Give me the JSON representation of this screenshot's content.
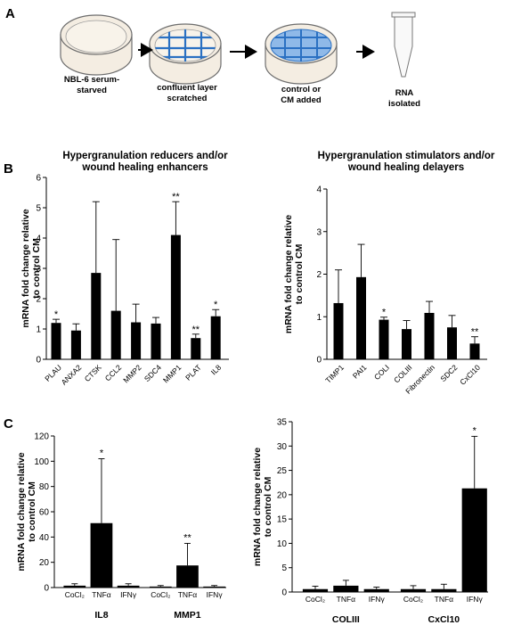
{
  "panels": {
    "a": "A",
    "b": "B",
    "c": "C"
  },
  "workflow": [
    {
      "lines": [
        "NBL-6 serum-",
        "starved"
      ]
    },
    {
      "lines": [
        "confluent layer",
        "scratched"
      ]
    },
    {
      "lines": [
        "control or",
        "CM added"
      ]
    },
    {
      "lines": [
        "RNA",
        "isolated"
      ]
    }
  ],
  "colors": {
    "bar": "#000000",
    "dish_fill": "#f4ede2",
    "dish_line": "#6e6e6e",
    "blue": "#2a70c2",
    "light_blue": "#8fb9e8"
  },
  "chart_data": [
    {
      "type": "bar",
      "title": [
        "Hypergranulation reducers and/or",
        "wound healing enhancers"
      ],
      "ylabel": [
        "mRNA fold change relative",
        "to control CM"
      ],
      "ylim": [
        0,
        6
      ],
      "yticks": [
        0,
        1,
        2,
        3,
        4,
        5,
        6
      ],
      "categories": [
        "PLAU",
        "ANXA2",
        "CTSK",
        "CCL2",
        "MMP2",
        "SDC4",
        "MMP1",
        "PLAT",
        "IL8"
      ],
      "values": [
        1.2,
        0.95,
        2.85,
        1.6,
        1.22,
        1.18,
        4.1,
        0.7,
        1.42
      ],
      "errors": [
        0.12,
        0.22,
        2.35,
        2.35,
        0.6,
        0.2,
        1.1,
        0.13,
        0.22
      ],
      "significance": [
        "*",
        "",
        "",
        "",
        "",
        "",
        "**",
        "**",
        "*"
      ]
    },
    {
      "type": "bar",
      "title": [
        "Hypergranulation stimulators and/or",
        "wound healing delayers"
      ],
      "ylabel": [
        "mRNA fold change relative",
        "to control CM"
      ],
      "ylim": [
        0,
        4
      ],
      "yticks": [
        0,
        1,
        2,
        3,
        4
      ],
      "categories": [
        "TIMP1",
        "PAI1",
        "COLI",
        "COLIII",
        "Fibronectin",
        "SDC2",
        "CxCl10"
      ],
      "values": [
        1.32,
        1.93,
        0.93,
        0.71,
        1.09,
        0.75,
        0.37
      ],
      "errors": [
        0.78,
        0.77,
        0.06,
        0.2,
        0.27,
        0.28,
        0.16
      ],
      "significance": [
        "",
        "",
        "*",
        "",
        "",
        "",
        "**"
      ]
    },
    {
      "type": "bar",
      "ylabel": [
        "mRNA fold change relative",
        "to control CM"
      ],
      "ylim": [
        0,
        120
      ],
      "yticks": [
        0,
        20,
        40,
        60,
        80,
        100,
        120
      ],
      "treatments": [
        "CoCl₂",
        "TNFα",
        "IFNγ"
      ],
      "groups": [
        {
          "name": "IL8",
          "values": [
            1.5,
            51,
            1.5
          ],
          "errors": [
            1.5,
            51,
            1.5
          ],
          "significance": [
            "",
            "*",
            ""
          ]
        },
        {
          "name": "MMP1",
          "values": [
            0.8,
            17.5,
            0.8
          ],
          "errors": [
            0.8,
            17.5,
            0.8
          ],
          "significance": [
            "",
            "**",
            ""
          ]
        }
      ]
    },
    {
      "type": "bar",
      "ylabel": [
        "mRNA fold change relative",
        "to control CM"
      ],
      "ylim": [
        0,
        35
      ],
      "yticks": [
        0,
        5,
        10,
        15,
        20,
        25,
        30,
        35
      ],
      "treatments": [
        "CoCl₂",
        "TNFα",
        "IFNγ"
      ],
      "groups": [
        {
          "name": "COLIII",
          "values": [
            0.6,
            1.3,
            0.6
          ],
          "errors": [
            0.6,
            1.1,
            0.4
          ],
          "significance": [
            "",
            "",
            ""
          ]
        },
        {
          "name": "CxCl10",
          "values": [
            0.6,
            0.6,
            21.3
          ],
          "errors": [
            0.7,
            1.0,
            10.7
          ],
          "significance": [
            "",
            "",
            "*"
          ]
        }
      ]
    }
  ]
}
